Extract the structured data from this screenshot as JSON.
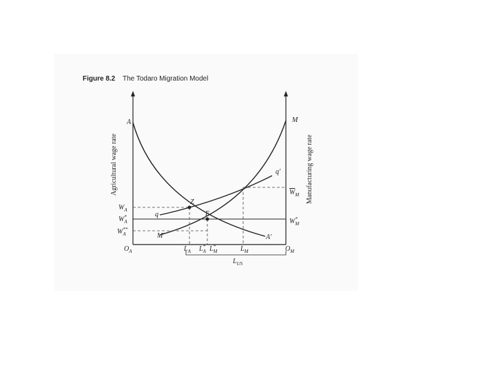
{
  "figure": {
    "number": "Figure 8.2",
    "title": "The Todaro Migration Model"
  },
  "axes": {
    "left": "Agricultural wage rate",
    "right": "Manufacturing wage rate"
  },
  "labels": [
    {
      "text": "A"
    },
    {
      "text": "M"
    },
    {
      "text": "q'"
    },
    {
      "text": "q"
    },
    {
      "text": "Z"
    },
    {
      "text": "E"
    },
    {
      "text": "W",
      "sub": "A"
    },
    {
      "text": "W",
      "sub": "A",
      "sup": "*"
    },
    {
      "text": "W",
      "sub": "A",
      "sup": "**"
    },
    {
      "text": "W",
      "sub": "M",
      "bar": true
    },
    {
      "text": "W",
      "sub": "M",
      "sup": "*"
    },
    {
      "text": "M'"
    },
    {
      "text": "A'"
    },
    {
      "text": "O",
      "sub": "A"
    },
    {
      "text": "L",
      "sub": "A"
    },
    {
      "text": "L",
      "sub": "A",
      "sup": "*"
    },
    {
      "text": "L",
      "sub": "M",
      "sup": "*"
    },
    {
      "text": "L",
      "sub": "M"
    },
    {
      "text": "O",
      "sub": "M"
    },
    {
      "text": "L",
      "sub": "US"
    }
  ]
}
